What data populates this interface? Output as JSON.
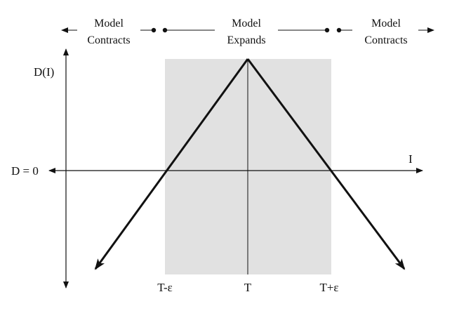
{
  "header": {
    "left": {
      "line1": "Model",
      "line2": "Contracts"
    },
    "center": {
      "line1": "Model",
      "line2": "Expands"
    },
    "right": {
      "line1": "Model",
      "line2": "Contracts"
    }
  },
  "axes": {
    "y_label": "D(I)",
    "x_label": "I",
    "zero_label": "D = 0"
  },
  "ticks": {
    "left": "T-ε",
    "center": "T",
    "right": "T+ε"
  },
  "colors": {
    "shade": "#e1e1e1",
    "ink": "#111111"
  }
}
